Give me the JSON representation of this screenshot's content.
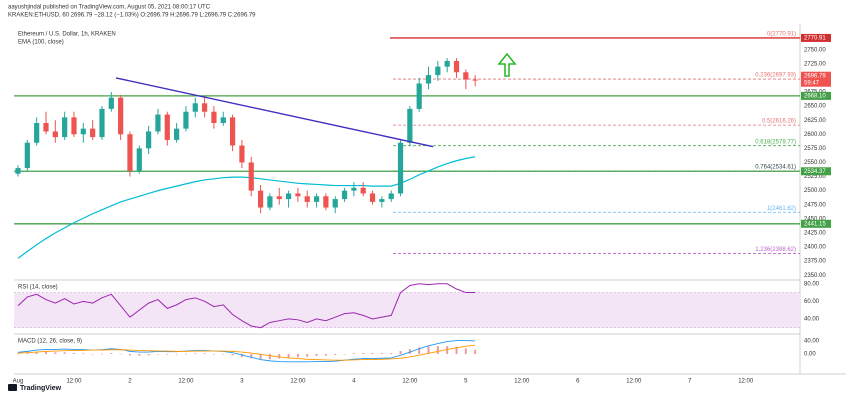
{
  "header": {
    "publisher": "aayushjindal published on TradingView.com, August 05, 2021 08:00:17 UTC",
    "symbol_line": "KRAKEN:ETHUSD, 60  2696.79  −28.12 (−1.03%)  O:2696.79 H:2696.79 L:2696.79 C:2696.79"
  },
  "footer": {
    "brand": "TradingView"
  },
  "chart_data": {
    "type": "candlestick",
    "title": "Ethereum / U.S. Dollar, 1h, KRAKEN",
    "categories": [
      "Aug",
      null,
      null,
      null,
      null,
      null,
      "12:00",
      null,
      null,
      null,
      null,
      null,
      "2",
      null,
      null,
      null,
      null,
      null,
      "12:00",
      null,
      null,
      null,
      null,
      null,
      "3",
      null,
      null,
      null,
      null,
      null,
      "12:00",
      null,
      null,
      null,
      null,
      null,
      "4",
      null,
      null,
      null,
      null,
      null,
      "12:00",
      null,
      null,
      null,
      null,
      null,
      "5",
      null,
      null,
      null,
      null,
      null,
      "12:00",
      null,
      null,
      null,
      null,
      null,
      "6",
      null,
      null,
      null,
      null,
      null,
      "12:00",
      null,
      null,
      null,
      null,
      null,
      "7",
      null,
      null,
      null,
      null,
      null,
      "12:00",
      null,
      null,
      null,
      null,
      null
    ],
    "open": [
      2530,
      2540,
      2585,
      2620,
      2605,
      2595,
      2630,
      2600,
      2610,
      2595,
      2645,
      2665,
      2600,
      2535,
      2575,
      2605,
      2635,
      2590,
      2610,
      2640,
      2655,
      2640,
      2620,
      2630,
      2580,
      2550,
      2500,
      2470,
      2490,
      2485,
      2495,
      2490,
      2480,
      2490,
      2470,
      2485,
      2500,
      2505,
      2495,
      2480,
      2485,
      2495,
      2585,
      2645,
      2690,
      2705,
      2720,
      2730,
      2710,
      2697,
      null,
      null,
      null,
      null,
      null,
      null,
      null,
      null,
      null,
      null,
      null,
      null,
      null,
      null,
      null,
      null,
      null,
      null,
      null,
      null,
      null,
      null,
      null,
      null,
      null,
      null,
      null,
      null,
      null,
      null,
      null,
      null,
      null,
      null
    ],
    "high": [
      2545,
      2590,
      2630,
      2640,
      2625,
      2640,
      2640,
      2620,
      2625,
      2650,
      2675,
      2670,
      2605,
      2580,
      2615,
      2645,
      2640,
      2620,
      2650,
      2665,
      2665,
      2650,
      2640,
      2635,
      2590,
      2560,
      2510,
      2495,
      2505,
      2500,
      2505,
      2500,
      2495,
      2495,
      2490,
      2505,
      2515,
      2515,
      2500,
      2490,
      2500,
      2590,
      2650,
      2700,
      2720,
      2730,
      2735,
      2735,
      2715,
      2705,
      null,
      null,
      null,
      null,
      null,
      null,
      null,
      null,
      null,
      null,
      null,
      null,
      null,
      null,
      null,
      null,
      null,
      null,
      null,
      null,
      null,
      null,
      null,
      null,
      null,
      null,
      null,
      null,
      null,
      null,
      null,
      null,
      null,
      null
    ],
    "low": [
      2525,
      2535,
      2580,
      2600,
      2585,
      2590,
      2595,
      2585,
      2590,
      2590,
      2640,
      2590,
      2525,
      2530,
      2565,
      2600,
      2580,
      2585,
      2605,
      2630,
      2630,
      2610,
      2615,
      2570,
      2540,
      2490,
      2460,
      2465,
      2475,
      2470,
      2480,
      2470,
      2470,
      2465,
      2460,
      2480,
      2490,
      2490,
      2475,
      2470,
      2480,
      2490,
      2580,
      2640,
      2680,
      2695,
      2710,
      2700,
      2680,
      2685,
      null,
      null,
      null,
      null,
      null,
      null,
      null,
      null,
      null,
      null,
      null,
      null,
      null,
      null,
      null,
      null,
      null,
      null,
      null,
      null,
      null,
      null,
      null,
      null,
      null,
      null,
      null,
      null,
      null,
      null,
      null,
      null,
      null,
      null
    ],
    "close": [
      2540,
      2585,
      2620,
      2605,
      2595,
      2630,
      2600,
      2610,
      2595,
      2645,
      2665,
      2600,
      2535,
      2575,
      2605,
      2635,
      2590,
      2610,
      2640,
      2655,
      2640,
      2620,
      2630,
      2580,
      2550,
      2500,
      2470,
      2490,
      2485,
      2495,
      2490,
      2480,
      2490,
      2470,
      2485,
      2500,
      2505,
      2495,
      2480,
      2485,
      2495,
      2585,
      2645,
      2690,
      2705,
      2720,
      2730,
      2710,
      2697,
      2696.79,
      null,
      null,
      null,
      null,
      null,
      null,
      null,
      null,
      null,
      null,
      null,
      null,
      null,
      null,
      null,
      null,
      null,
      null,
      null,
      null,
      null,
      null,
      null,
      null,
      null,
      null,
      null,
      null,
      null,
      null,
      null,
      null,
      null,
      null
    ],
    "up_color": "#26a69a",
    "down_color": "#ef5350",
    "ylim": [
      2345,
      2785
    ],
    "yticks": [
      {
        "value": 2350,
        "label": "2350.00"
      },
      {
        "value": 2375,
        "label": "2375.00"
      },
      {
        "value": 2400,
        "label": "2400.00"
      },
      {
        "value": 2425,
        "label": "2425.00"
      },
      {
        "value": 2450,
        "label": "2450.00"
      },
      {
        "value": 2475,
        "label": "2475.00"
      },
      {
        "value": 2500,
        "label": "2500.00"
      },
      {
        "value": 2525,
        "label": "2525.00"
      },
      {
        "value": 2550,
        "label": "2550.00"
      },
      {
        "value": 2575,
        "label": "2575.00"
      },
      {
        "value": 2600,
        "label": "2600.00"
      },
      {
        "value": 2625,
        "label": "2625.00"
      },
      {
        "value": 2650,
        "label": "2650.00"
      },
      {
        "value": 2675,
        "label": "2675.00"
      },
      {
        "value": 2700,
        "label": "2700.00"
      },
      {
        "value": 2725,
        "label": "2725.00"
      },
      {
        "value": 2750,
        "label": "2750.00"
      }
    ],
    "grid": false,
    "series": [
      {
        "name": "EMA (100, close)",
        "color": "#00bcd4",
        "values": [
          2380,
          2392,
          2404,
          2415,
          2425,
          2434,
          2443,
          2451,
          2459,
          2466,
          2473,
          2480,
          2485,
          2490,
          2495,
          2500,
          2504,
          2508,
          2512,
          2516,
          2519,
          2521,
          2523,
          2524,
          2524,
          2523,
          2521,
          2519,
          2517,
          2515,
          2513,
          2512,
          2511,
          2510,
          2509,
          2509,
          2509,
          2509,
          2508,
          2508,
          2508,
          2513,
          2520,
          2528,
          2535,
          2542,
          2548,
          2553,
          2557,
          2560,
          null,
          null,
          null,
          null,
          null,
          null,
          null,
          null,
          null,
          null,
          null,
          null,
          null,
          null,
          null,
          null,
          null,
          null,
          null,
          null,
          null,
          null,
          null,
          null,
          null,
          null,
          null,
          null,
          null,
          null,
          null,
          null,
          null,
          null
        ]
      }
    ],
    "levels": [
      {
        "value": 2770.91,
        "label": "2770.91",
        "color": "#d32f2f"
      },
      {
        "value": 2668.1,
        "label": "2668.10",
        "color": "#43a047"
      },
      {
        "value": 2534.37,
        "label": "2534.37",
        "color": "#43a047"
      },
      {
        "value": 2441.15,
        "label": "2441.15",
        "color": "#43a047"
      }
    ],
    "fib": [
      {
        "value": 2770.91,
        "label": "0(2770.91)",
        "color": "#e57373"
      },
      {
        "value": 2697.93,
        "label": "0.236(2697.93)",
        "color": "#e57373"
      },
      {
        "value": 2616.26,
        "label": "0.5(2616.26)",
        "color": "#e57373"
      },
      {
        "value": 2579.77,
        "label": "0.618(2579.77)",
        "color": "#4caf50"
      },
      {
        "value": 2534.61,
        "label": "0.764(2534.61)",
        "color": "#37474f"
      },
      {
        "value": 2461.62,
        "label": "1(2461.62)",
        "color": "#64b5f6"
      },
      {
        "value": 2388.62,
        "label": "1.236(2388.62)",
        "color": "#ba68c8"
      }
    ],
    "trendline": {
      "values": [
        2700,
        2578
      ],
      "color": "#3f2fbf"
    },
    "last_price": {
      "value": 2696.79,
      "label": "2696.79",
      "countdown": "59:47",
      "color": "#ef5350"
    },
    "rsi": {
      "title": "RSI (14, close)",
      "color": "#9c27b0",
      "band": [
        30,
        70
      ],
      "band_color": "#f3e5f5",
      "ylim": [
        24,
        82
      ],
      "yticks": [
        {
          "value": 40,
          "label": "40.00"
        },
        {
          "value": 60,
          "label": "60.00"
        },
        {
          "value": 80,
          "label": "80.00"
        }
      ],
      "values": [
        55,
        65,
        68,
        62,
        58,
        63,
        57,
        60,
        58,
        64,
        68,
        55,
        42,
        50,
        58,
        62,
        52,
        56,
        62,
        64,
        60,
        54,
        56,
        45,
        38,
        32,
        30,
        36,
        38,
        40,
        39,
        36,
        40,
        38,
        42,
        46,
        47,
        44,
        40,
        42,
        44,
        70,
        78,
        80,
        79,
        80,
        80,
        74,
        70,
        70,
        null,
        null,
        null,
        null,
        null,
        null,
        null,
        null,
        null,
        null,
        null,
        null,
        null,
        null,
        null,
        null,
        null,
        null,
        null,
        null,
        null,
        null,
        null,
        null,
        null,
        null,
        null,
        null,
        null,
        null,
        null,
        null,
        null,
        null
      ]
    },
    "macd": {
      "title": "MACD (12, 26, close, 9)",
      "ylim": [
        -55,
        55
      ],
      "yticks": [
        {
          "value": 0,
          "label": "0.00"
        },
        {
          "value": 40,
          "label": "40.00"
        }
      ],
      "macd_color": "#2196f3",
      "signal_color": "#ff9800",
      "hist_color": "#ef9a9a",
      "macd_values": [
        5,
        8,
        12,
        14,
        14,
        15,
        14,
        13,
        12,
        13,
        16,
        14,
        8,
        6,
        6,
        8,
        7,
        7,
        9,
        11,
        11,
        9,
        8,
        4,
        -3,
        -10,
        -17,
        -21,
        -23,
        -24,
        -24,
        -24,
        -23,
        -23,
        -22,
        -19,
        -16,
        -14,
        -14,
        -13,
        -12,
        -4,
        6,
        16,
        25,
        32,
        38,
        41,
        41,
        40,
        null,
        null,
        null,
        null,
        null,
        null,
        null,
        null,
        null,
        null,
        null,
        null,
        null,
        null,
        null,
        null,
        null,
        null,
        null,
        null,
        null,
        null,
        null,
        null,
        null,
        null,
        null,
        null,
        null,
        null,
        null,
        null,
        null,
        null
      ],
      "signal_values": [
        3,
        4,
        6,
        8,
        9,
        10,
        11,
        11,
        12,
        12,
        13,
        13,
        12,
        11,
        10,
        9,
        9,
        8,
        8,
        9,
        9,
        9,
        9,
        8,
        6,
        3,
        -1,
        -5,
        -9,
        -12,
        -14,
        -16,
        -17,
        -18,
        -19,
        -19,
        -18,
        -17,
        -17,
        -16,
        -15,
        -13,
        -9,
        -4,
        2,
        8,
        14,
        19,
        24,
        27,
        null,
        null,
        null,
        null,
        null,
        null,
        null,
        null,
        null,
        null,
        null,
        null,
        null,
        null,
        null,
        null,
        null,
        null,
        null,
        null,
        null,
        null,
        null,
        null,
        null,
        null,
        null,
        null,
        null,
        null,
        null,
        null,
        null,
        null
      ],
      "histogram": [
        2,
        4,
        6,
        6,
        5,
        5,
        3,
        2,
        0,
        1,
        3,
        1,
        -4,
        -5,
        -4,
        -1,
        -2,
        -1,
        1,
        2,
        2,
        0,
        -1,
        -4,
        -9,
        -13,
        -16,
        -16,
        -14,
        -12,
        -10,
        -8,
        -6,
        -5,
        -3,
        0,
        2,
        3,
        3,
        3,
        3,
        9,
        15,
        20,
        23,
        24,
        24,
        22,
        17,
        13,
        null,
        null,
        null,
        null,
        null,
        null,
        null,
        null,
        null,
        null,
        null,
        null,
        null,
        null,
        null,
        null,
        null,
        null,
        null,
        null,
        null,
        null,
        null,
        null,
        null,
        null,
        null,
        null,
        null,
        null,
        null,
        null,
        null,
        null
      ]
    }
  }
}
